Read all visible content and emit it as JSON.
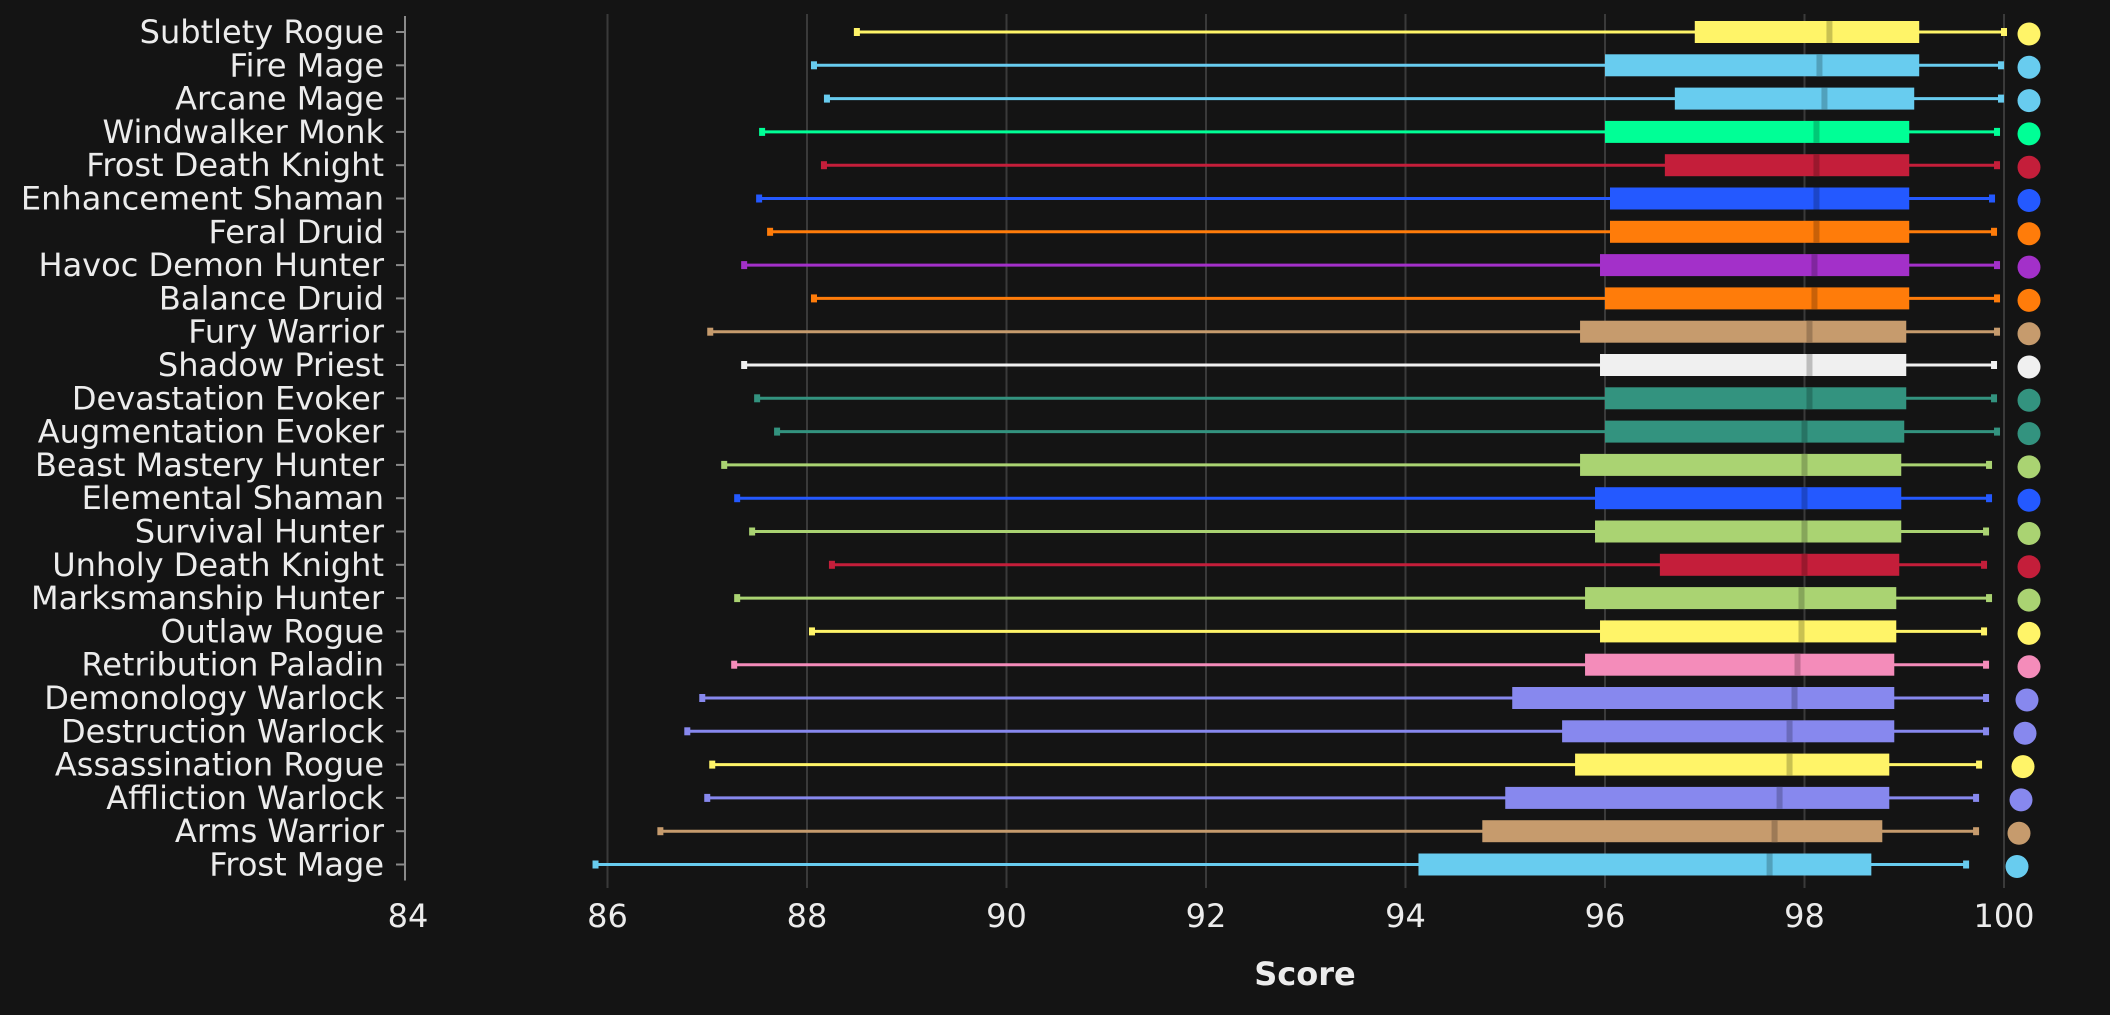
{
  "chart_data": {
    "type": "boxplot",
    "title": "",
    "xlabel": "Score",
    "ylabel": "",
    "xlim": [
      84,
      100
    ],
    "xticks": [
      84,
      86,
      88,
      90,
      92,
      94,
      96,
      98,
      100
    ],
    "grid": "vertical",
    "legend": "none",
    "series": [
      {
        "name": "Subtlety Rogue",
        "min": 88.5,
        "q1": 96.9,
        "median": 98.25,
        "q3": 99.15,
        "max": 100.0,
        "color": "#FFF468"
      },
      {
        "name": "Fire Mage",
        "min": 88.07,
        "q1": 96.0,
        "median": 98.15,
        "q3": 99.15,
        "max": 99.97,
        "color": "#68CCEF"
      },
      {
        "name": "Arcane Mage",
        "min": 88.2,
        "q1": 96.7,
        "median": 98.2,
        "q3": 99.1,
        "max": 99.97,
        "color": "#68CCEF"
      },
      {
        "name": "Windwalker Monk",
        "min": 87.55,
        "q1": 96.0,
        "median": 98.12,
        "q3": 99.05,
        "max": 99.93,
        "color": "#00FF96"
      },
      {
        "name": "Frost Death Knight",
        "min": 88.17,
        "q1": 96.6,
        "median": 98.12,
        "q3": 99.05,
        "max": 99.93,
        "color": "#C41E3A"
      },
      {
        "name": "Enhancement Shaman",
        "min": 87.52,
        "q1": 96.05,
        "median": 98.12,
        "q3": 99.05,
        "max": 99.88,
        "color": "#2459FF"
      },
      {
        "name": "Feral Druid",
        "min": 87.63,
        "q1": 96.05,
        "median": 98.12,
        "q3": 99.05,
        "max": 99.9,
        "color": "#FF7C0A"
      },
      {
        "name": "Havoc Demon Hunter",
        "min": 87.37,
        "q1": 95.95,
        "median": 98.1,
        "q3": 99.05,
        "max": 99.93,
        "color": "#A330C9"
      },
      {
        "name": "Balance Druid",
        "min": 88.07,
        "q1": 96.0,
        "median": 98.1,
        "q3": 99.05,
        "max": 99.93,
        "color": "#FF7C0A"
      },
      {
        "name": "Fury Warrior",
        "min": 87.03,
        "q1": 95.75,
        "median": 98.05,
        "q3": 99.02,
        "max": 99.93,
        "color": "#C69B6D"
      },
      {
        "name": "Shadow Priest",
        "min": 87.37,
        "q1": 95.95,
        "median": 98.05,
        "q3": 99.02,
        "max": 99.9,
        "color": "#F0F0F0"
      },
      {
        "name": "Devastation Evoker",
        "min": 87.5,
        "q1": 96.0,
        "median": 98.05,
        "q3": 99.02,
        "max": 99.9,
        "color": "#33937F"
      },
      {
        "name": "Augmentation Evoker",
        "min": 87.7,
        "q1": 96.0,
        "median": 98.0,
        "q3": 99.0,
        "max": 99.93,
        "color": "#33937F"
      },
      {
        "name": "Beast Mastery Hunter",
        "min": 87.17,
        "q1": 95.75,
        "median": 98.0,
        "q3": 98.97,
        "max": 99.85,
        "color": "#AAD372"
      },
      {
        "name": "Elemental Shaman",
        "min": 87.3,
        "q1": 95.9,
        "median": 98.0,
        "q3": 98.97,
        "max": 99.85,
        "color": "#2459FF"
      },
      {
        "name": "Survival Hunter",
        "min": 87.45,
        "q1": 95.9,
        "median": 98.0,
        "q3": 98.97,
        "max": 99.82,
        "color": "#AAD372"
      },
      {
        "name": "Unholy Death Knight",
        "min": 88.25,
        "q1": 96.55,
        "median": 98.0,
        "q3": 98.95,
        "max": 99.8,
        "color": "#C41E3A"
      },
      {
        "name": "Marksmanship Hunter",
        "min": 87.3,
        "q1": 95.8,
        "median": 97.97,
        "q3": 98.92,
        "max": 99.85,
        "color": "#AAD372"
      },
      {
        "name": "Outlaw Rogue",
        "min": 88.05,
        "q1": 95.95,
        "median": 97.97,
        "q3": 98.92,
        "max": 99.8,
        "color": "#FFF468"
      },
      {
        "name": "Retribution Paladin",
        "min": 87.27,
        "q1": 95.8,
        "median": 97.93,
        "q3": 98.9,
        "max": 99.82,
        "color": "#F48CBA"
      },
      {
        "name": "Demonology Warlock",
        "min": 86.95,
        "q1": 95.07,
        "median": 97.9,
        "q3": 98.9,
        "max": 99.82,
        "color": "#8788EE"
      },
      {
        "name": "Destruction Warlock",
        "min": 86.8,
        "q1": 95.57,
        "median": 97.85,
        "q3": 98.9,
        "max": 99.82,
        "color": "#8788EE"
      },
      {
        "name": "Assassination Rogue",
        "min": 87.05,
        "q1": 95.7,
        "median": 97.85,
        "q3": 98.85,
        "max": 99.75,
        "color": "#FFF468"
      },
      {
        "name": "Affliction Warlock",
        "min": 87.0,
        "q1": 95.0,
        "median": 97.75,
        "q3": 98.85,
        "max": 99.72,
        "color": "#8788EE"
      },
      {
        "name": "Arms Warrior",
        "min": 86.53,
        "q1": 94.77,
        "median": 97.7,
        "q3": 98.78,
        "max": 99.72,
        "color": "#C69B6D"
      },
      {
        "name": "Frost Mage",
        "min": 85.88,
        "q1": 94.13,
        "median": 97.65,
        "q3": 98.67,
        "max": 99.62,
        "color": "#68CCEF"
      }
    ]
  }
}
